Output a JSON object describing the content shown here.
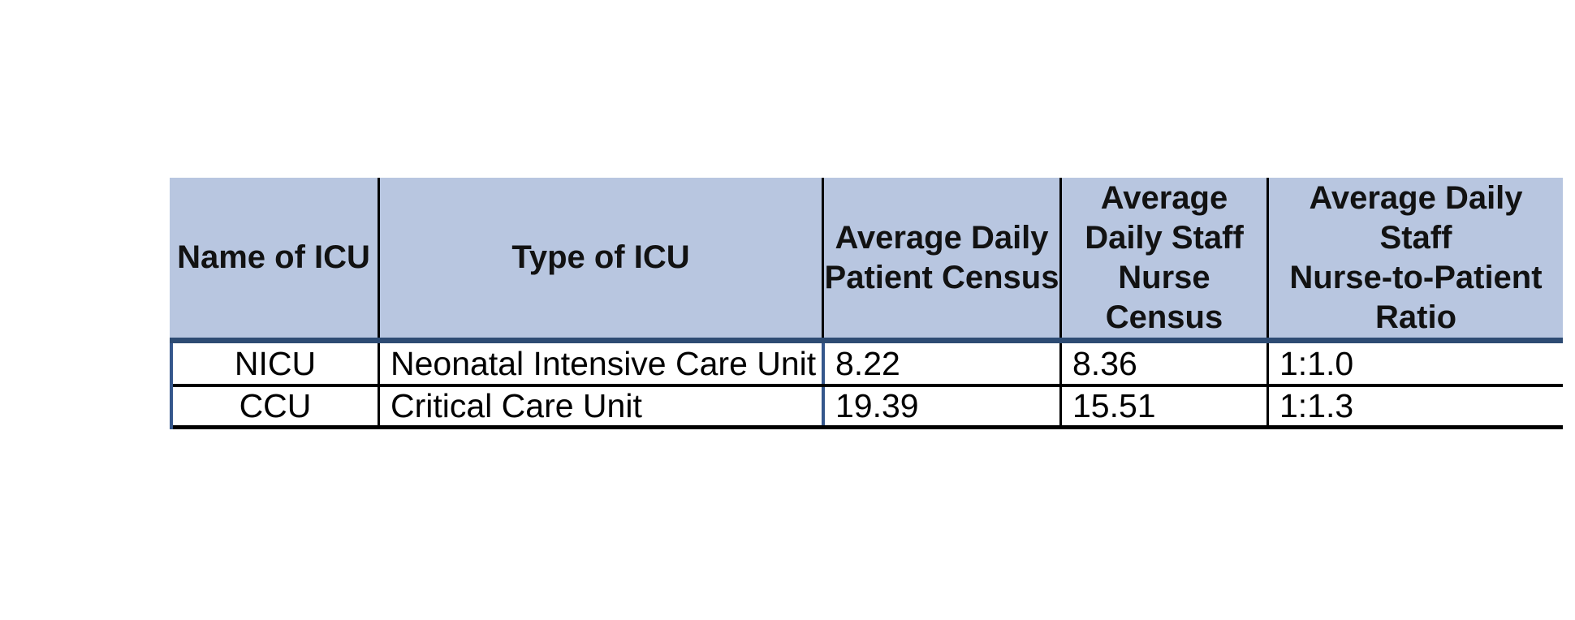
{
  "page": {
    "background": "#ffffff"
  },
  "table": {
    "columns": [
      {
        "label": "Name of ICU"
      },
      {
        "label": "Type of ICU"
      },
      {
        "label": "Average Daily\nPatient Census"
      },
      {
        "label": "Average\nDaily Staff\nNurse\nCensus"
      },
      {
        "label": "Average Daily Staff\nNurse-to-Patient\nRatio"
      }
    ],
    "rows": [
      {
        "cells": [
          "NICU",
          "Neonatal Intensive Care Unit",
          "8.22",
          "8.36",
          "1:1.0"
        ]
      },
      {
        "cells": [
          "CCU",
          "Critical Care Unit",
          "19.39",
          "15.51",
          "1:1.3"
        ]
      }
    ],
    "colors": {
      "header_bg": "#b8c6e0",
      "header_rule": "#2d4b73",
      "body_accent_border": "#35578c",
      "grid_line": "#000000"
    }
  }
}
